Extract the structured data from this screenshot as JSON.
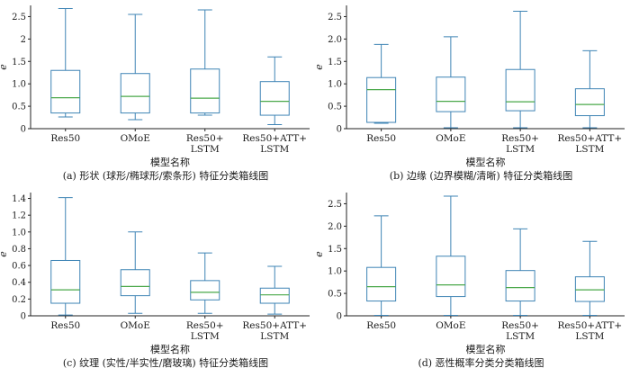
{
  "colors": {
    "box": "#3f84b5",
    "median": "#4aa84a",
    "axis": "#222222"
  },
  "charts": [
    {
      "caption": "(a)  形状 (球形/椭球形/索条形) 特征分类箱线图",
      "ylabel": "e",
      "xlabel": "模型名称",
      "yticks": [
        "0",
        "0.5",
        "1.0",
        "1.5",
        "2",
        "2.5"
      ],
      "categories": [
        [
          "Res50"
        ],
        [
          "OMoE"
        ],
        [
          "Res50+",
          "LSTM"
        ],
        [
          "Res50+ATT+",
          "LSTM"
        ]
      ]
    },
    {
      "caption": "(b)  边缘 (边界模糊/清晰) 特征分类箱线图",
      "ylabel": "e",
      "xlabel": "模型名称",
      "yticks": [
        "0",
        "0.5",
        "1.0",
        "1.5",
        "2.0",
        "2.5"
      ],
      "categories": [
        [
          "Res50"
        ],
        [
          "OMoE"
        ],
        [
          "Res50+",
          "LSTM"
        ],
        [
          "Res50+ATT+",
          "LSTM"
        ]
      ]
    },
    {
      "caption": "(c)  纹理 (实性/半实性/磨玻璃) 特征分类箱线图",
      "ylabel": "e",
      "xlabel": "模型名称",
      "yticks": [
        "0",
        "0.2",
        "0.4",
        "0.6",
        "0.8",
        "1.0",
        "1.2",
        "1.4"
      ],
      "categories": [
        [
          "Res50"
        ],
        [
          "OMoE"
        ],
        [
          "Res50+",
          "LSTM"
        ],
        [
          "Res50+ATT+",
          "LSTM"
        ]
      ]
    },
    {
      "caption": "(d)  恶性概率分类分类箱线图",
      "ylabel": "e",
      "xlabel": "模型名称",
      "yticks": [
        "0",
        "0.5",
        "1.0",
        "1.5",
        "2.0",
        "2.5"
      ],
      "categories": [
        [
          "Res50"
        ],
        [
          "OMoE"
        ],
        [
          "Res50+",
          "LSTM"
        ],
        [
          "Res50+ATT+",
          "LSTM"
        ]
      ]
    }
  ],
  "chart_data": [
    {
      "type": "box",
      "categories": [
        "Res50",
        "OMoE",
        "Res50+LSTM",
        "Res50+ATT+LSTM"
      ],
      "ylim": [
        0,
        2.75
      ],
      "boxes": [
        {
          "whislo": 0.26,
          "q1": 0.35,
          "med": 0.69,
          "q3": 1.3,
          "whishi": 2.68
        },
        {
          "whislo": 0.2,
          "q1": 0.35,
          "med": 0.72,
          "q3": 1.23,
          "whishi": 2.55
        },
        {
          "whislo": 0.3,
          "q1": 0.35,
          "med": 0.68,
          "q3": 1.33,
          "whishi": 2.65
        },
        {
          "whislo": 0.09,
          "q1": 0.3,
          "med": 0.61,
          "q3": 1.05,
          "whishi": 1.6
        }
      ]
    },
    {
      "type": "box",
      "categories": [
        "Res50",
        "OMoE",
        "Res50+LSTM",
        "Res50+ATT+LSTM"
      ],
      "ylim": [
        0,
        2.75
      ],
      "boxes": [
        {
          "whislo": 0.12,
          "q1": 0.14,
          "med": 0.87,
          "q3": 1.14,
          "whishi": 1.88
        },
        {
          "whislo": 0.02,
          "q1": 0.38,
          "med": 0.61,
          "q3": 1.15,
          "whishi": 2.05
        },
        {
          "whislo": 0.02,
          "q1": 0.4,
          "med": 0.6,
          "q3": 1.32,
          "whishi": 2.62
        },
        {
          "whislo": 0.02,
          "q1": 0.29,
          "med": 0.54,
          "q3": 0.89,
          "whishi": 1.74
        }
      ]
    },
    {
      "type": "box",
      "categories": [
        "Res50",
        "OMoE",
        "Res50+LSTM",
        "Res50+ATT+LSTM"
      ],
      "ylim": [
        0,
        1.47
      ],
      "boxes": [
        {
          "whislo": 0.01,
          "q1": 0.15,
          "med": 0.31,
          "q3": 0.66,
          "whishi": 1.41
        },
        {
          "whislo": 0.03,
          "q1": 0.24,
          "med": 0.35,
          "q3": 0.55,
          "whishi": 1.0
        },
        {
          "whislo": 0.03,
          "q1": 0.19,
          "med": 0.28,
          "q3": 0.42,
          "whishi": 0.75
        },
        {
          "whislo": 0.02,
          "q1": 0.15,
          "med": 0.25,
          "q3": 0.33,
          "whishi": 0.59
        }
      ]
    },
    {
      "type": "box",
      "categories": [
        "Res50",
        "OMoE",
        "Res50+LSTM",
        "Res50+ATT+LSTM"
      ],
      "ylim": [
        0,
        2.75
      ],
      "boxes": [
        {
          "whislo": 0.01,
          "q1": 0.33,
          "med": 0.65,
          "q3": 1.08,
          "whishi": 2.23
        },
        {
          "whislo": 0.01,
          "q1": 0.43,
          "med": 0.69,
          "q3": 1.33,
          "whishi": 2.67
        },
        {
          "whislo": 0.01,
          "q1": 0.33,
          "med": 0.63,
          "q3": 1.01,
          "whishi": 1.94
        },
        {
          "whislo": 0.01,
          "q1": 0.32,
          "med": 0.58,
          "q3": 0.87,
          "whishi": 1.66
        }
      ]
    }
  ]
}
